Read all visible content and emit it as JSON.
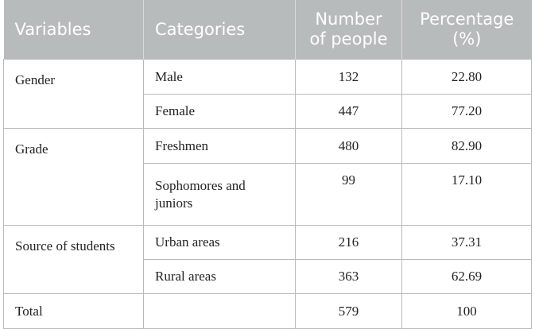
{
  "table": {
    "headers": [
      "Variables",
      "Categories",
      "Number of people",
      "Percentage (%)"
    ],
    "header_lines": {
      "number": [
        "Number",
        "of people"
      ],
      "percentage": [
        "Percentage",
        "(%)"
      ]
    },
    "groups": [
      {
        "variable": "Gender",
        "rows": [
          {
            "category": "Male",
            "number": "132",
            "percentage": "22.80"
          },
          {
            "category": "Female",
            "number": "447",
            "percentage": "77.20"
          }
        ]
      },
      {
        "variable": "Grade",
        "rows": [
          {
            "category": "Freshmen",
            "number": "480",
            "percentage": "82.90"
          },
          {
            "category": "Sophomores and juniors",
            "number": "99",
            "percentage": "17.10"
          }
        ]
      },
      {
        "variable": "Source of students",
        "rows": [
          {
            "category": "Urban areas",
            "number": "216",
            "percentage": "37.31"
          },
          {
            "category": "Rural areas",
            "number": "363",
            "percentage": "62.69"
          }
        ]
      }
    ],
    "total": {
      "variable": "Total",
      "category": "",
      "number": "579",
      "percentage": "100"
    },
    "colors": {
      "header_bg": "#b8bbbc",
      "header_text": "#ffffff",
      "border": "#b8bbbc"
    }
  }
}
